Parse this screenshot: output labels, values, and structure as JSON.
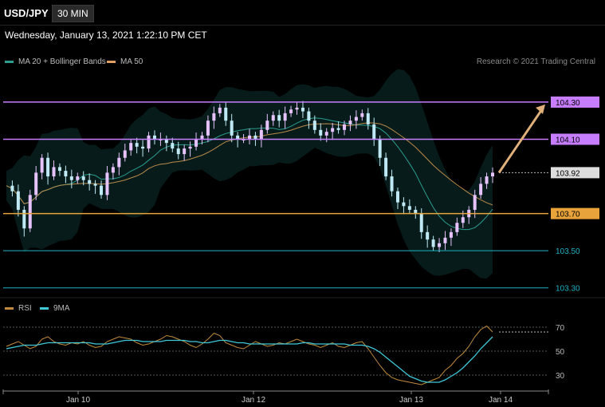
{
  "header": {
    "symbol": "USD/JPY",
    "timeframe": "30 MIN"
  },
  "timestamp": "Wednesday, January 13, 2021 1:22:10 PM CET",
  "credit": "Research © 2021 Trading Central",
  "legend_main": [
    {
      "label": "MA 20 + Bollinger Bands",
      "color": "#2a9d8f"
    },
    {
      "label": "MA 50",
      "color": "#e0a060"
    }
  ],
  "legend_rsi": [
    {
      "label": "RSI",
      "color": "#c08a3e"
    },
    {
      "label": "9MA",
      "color": "#3ec8d8"
    }
  ],
  "chart_data": [
    {
      "type": "line",
      "title": "",
      "xlabel": "",
      "ylabel": "",
      "ylim": [
        103.26,
        104.42
      ],
      "x_ticks": [
        "Jan 10",
        "Jan 12",
        "Jan 13",
        "Jan 14"
      ],
      "levels": [
        {
          "label": "104.30",
          "value": 104.3,
          "role": "resistance",
          "color": "#c77dff"
        },
        {
          "label": "104.10",
          "value": 104.1,
          "role": "resistance",
          "color": "#c77dff"
        },
        {
          "label": "103.92",
          "value": 103.92,
          "role": "last",
          "color": "#dddddd"
        },
        {
          "label": "103.70",
          "value": 103.7,
          "role": "support",
          "color": "#e8a33a"
        },
        {
          "label": "103.50",
          "value": 103.5,
          "role": "support",
          "color": "#20b2c2"
        },
        {
          "label": "103.30",
          "value": 103.3,
          "role": "support",
          "color": "#20b2c2"
        }
      ],
      "price_series": [
        103.85,
        103.82,
        103.72,
        103.62,
        103.8,
        103.92,
        104.0,
        103.9,
        103.95,
        103.93,
        103.9,
        103.88,
        103.9,
        103.88,
        103.86,
        103.85,
        103.8,
        103.92,
        103.95,
        104.0,
        104.04,
        104.08,
        104.06,
        104.05,
        104.12,
        104.1,
        104.1,
        104.08,
        104.05,
        104.02,
        104.05,
        104.06,
        104.1,
        104.12,
        104.2,
        104.24,
        104.27,
        104.2,
        104.12,
        104.1,
        104.1,
        104.12,
        104.1,
        104.15,
        104.2,
        104.23,
        104.2,
        104.24,
        104.26,
        104.27,
        104.25,
        104.2,
        104.15,
        104.12,
        104.14,
        104.16,
        104.15,
        104.18,
        104.2,
        104.22,
        104.24,
        104.18,
        104.1,
        104.0,
        103.9,
        103.82,
        103.76,
        103.74,
        103.72,
        103.7,
        103.6,
        103.56,
        103.52,
        103.54,
        103.57,
        103.6,
        103.65,
        103.68,
        103.72,
        103.8,
        103.86,
        103.9,
        103.92
      ],
      "projection": {
        "from": 103.92,
        "to": 104.3
      }
    },
    {
      "type": "line",
      "title": "",
      "ylim": [
        20,
        80
      ],
      "y_ticks": [
        "70",
        "50",
        "30"
      ],
      "series": [
        {
          "name": "RSI",
          "values": [
            54,
            56,
            58,
            55,
            52,
            54,
            60,
            62,
            58,
            56,
            55,
            57,
            56,
            58,
            55,
            53,
            54,
            58,
            60,
            62,
            61,
            60,
            57,
            55,
            56,
            58,
            60,
            63,
            62,
            60,
            58,
            55,
            53,
            56,
            60,
            65,
            63,
            57,
            55,
            53,
            52,
            55,
            58,
            56,
            54,
            55,
            57,
            56,
            58,
            60,
            58,
            56,
            55,
            53,
            55,
            57,
            54,
            53,
            55,
            57,
            58,
            52,
            45,
            38,
            32,
            28,
            26,
            25,
            24,
            23,
            22,
            24,
            26,
            28,
            34,
            38,
            44,
            48,
            54,
            62,
            68,
            71,
            66
          ]
        },
        {
          "name": "9MA",
          "values": [
            52,
            53,
            54,
            55,
            55,
            55,
            56,
            57,
            57,
            57,
            57,
            57,
            57,
            57,
            57,
            56,
            56,
            56,
            57,
            58,
            59,
            59,
            59,
            58,
            58,
            58,
            58,
            59,
            59,
            59,
            59,
            58,
            58,
            57,
            57,
            58,
            59,
            59,
            58,
            57,
            57,
            56,
            56,
            56,
            56,
            56,
            56,
            56,
            56,
            56,
            57,
            57,
            56,
            56,
            56,
            56,
            56,
            56,
            55,
            55,
            55,
            54,
            52,
            49,
            45,
            41,
            37,
            33,
            29,
            27,
            25,
            24,
            24,
            24,
            26,
            29,
            32,
            36,
            41,
            46,
            52,
            57,
            62
          ]
        }
      ]
    }
  ]
}
